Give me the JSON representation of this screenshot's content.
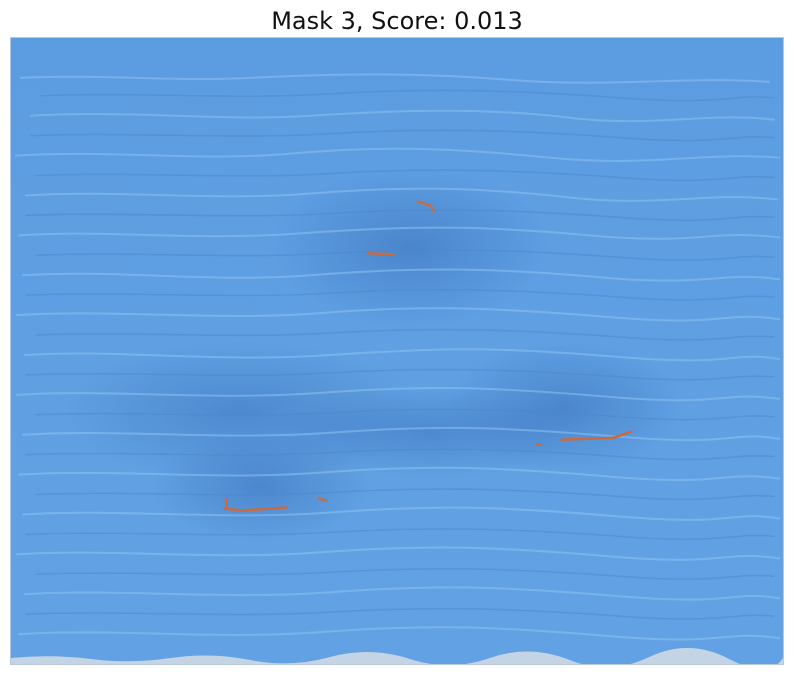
{
  "figure": {
    "title": "Mask 3, Score: 0.013"
  },
  "colors": {
    "mask_overlay": "#5f9fe2",
    "mask_overlay_dark": "#3d78c6",
    "texture_highlight": "#8ec2f4",
    "defect_highlight": "#c96a3f",
    "frame_border": "#b9c8d8",
    "background": "#ffffff"
  }
}
